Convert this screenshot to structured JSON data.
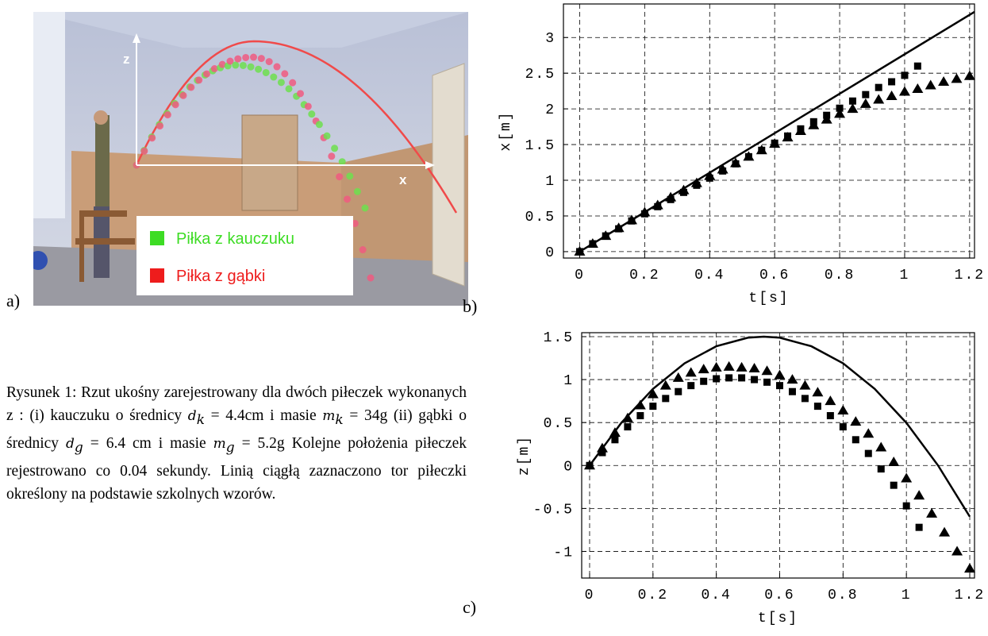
{
  "figure": {
    "panel_labels": [
      "a)",
      "b)",
      "c)"
    ],
    "photo": {
      "axis_labels": [
        "z",
        "x"
      ],
      "legend": [
        "Piłka z kauczuku",
        "Piłka z gąbki"
      ]
    }
  },
  "caption": {
    "parts": [
      "Rysunek 1: Rzut ukośny zarejestrowany dla dwóch piłeczek wykonanych z : (i) kauczuku o średnicy ",
      "d",
      "k",
      " = 4.4cm i masie ",
      "m",
      "k",
      " = 34g (ii) gąbki o średnicy ",
      "d",
      "g",
      " = 6.4 cm i masie ",
      "m",
      "g",
      " = 5.2g Kolejne położenia piłeczek rejestrowano co 0.04 sekundy. Linią ciągłą zaznaczono tor piłeczki określony na podstawie szkolnych wzorów."
    ]
  },
  "chart_data": [
    {
      "type": "line",
      "x_label": "t[s]",
      "y_label": "x[m]",
      "grid": true,
      "xlim": [
        -0.05,
        1.215
      ],
      "ylim": [
        -0.09,
        3.47
      ],
      "xticks": [
        0,
        0.2,
        0.4,
        0.6,
        0.8,
        1,
        1.2
      ],
      "yticks": [
        0,
        0.5,
        1,
        1.5,
        2,
        2.5,
        3
      ],
      "series": [
        {
          "marker": "none",
          "color": "#000000",
          "x": [
            0,
            1.215
          ],
          "values": [
            0,
            3.36
          ]
        },
        {
          "marker": "square",
          "color": "#000000",
          "x": [
            0,
            0.04,
            0.08,
            0.12,
            0.16,
            0.2,
            0.24,
            0.28,
            0.32,
            0.36,
            0.4,
            0.44,
            0.48,
            0.52,
            0.56,
            0.6,
            0.64,
            0.68,
            0.72,
            0.76,
            0.8,
            0.84,
            0.88,
            0.92,
            0.96,
            1,
            1.04
          ],
          "values": [
            0,
            0.11,
            0.22,
            0.32,
            0.43,
            0.53,
            0.63,
            0.73,
            0.83,
            0.93,
            1.03,
            1.13,
            1.23,
            1.33,
            1.42,
            1.52,
            1.62,
            1.72,
            1.82,
            1.91,
            2.01,
            2.11,
            2.2,
            2.3,
            2.38,
            2.47,
            2.6
          ]
        },
        {
          "marker": "triangle",
          "color": "#000000",
          "x": [
            0,
            0.04,
            0.08,
            0.12,
            0.16,
            0.2,
            0.24,
            0.28,
            0.32,
            0.36,
            0.4,
            0.44,
            0.48,
            0.52,
            0.56,
            0.6,
            0.64,
            0.68,
            0.72,
            0.76,
            0.8,
            0.84,
            0.88,
            0.92,
            0.96,
            1,
            1.04,
            1.08,
            1.12,
            1.16,
            1.2
          ],
          "values": [
            0,
            0.11,
            0.22,
            0.33,
            0.44,
            0.55,
            0.65,
            0.76,
            0.86,
            0.96,
            1.06,
            1.15,
            1.24,
            1.33,
            1.42,
            1.51,
            1.6,
            1.69,
            1.77,
            1.85,
            1.93,
            2.0,
            2.07,
            2.13,
            2.18,
            2.24,
            2.28,
            2.33,
            2.38,
            2.42,
            2.46
          ]
        }
      ]
    },
    {
      "type": "line",
      "x_label": "t[s]",
      "y_label": "z[m]",
      "grid": true,
      "xlim": [
        -0.025,
        1.215
      ],
      "ylim": [
        -1.31,
        1.546
      ],
      "xticks": [
        0,
        0.2,
        0.4,
        0.6,
        0.8,
        1,
        1.2
      ],
      "yticks": [
        -1,
        -0.5,
        0,
        0.5,
        1,
        1.5
      ],
      "series": [
        {
          "marker": "none",
          "color": "#000000",
          "x": [
            0,
            0.1,
            0.2,
            0.3,
            0.4,
            0.5,
            0.55,
            0.6,
            0.7,
            0.8,
            0.9,
            1,
            1.1,
            1.2
          ],
          "values": [
            0,
            0.496,
            0.892,
            1.19,
            1.388,
            1.488,
            1.5,
            1.488,
            1.388,
            1.19,
            0.892,
            0.496,
            0,
            -0.595
          ]
        },
        {
          "marker": "square",
          "color": "#000000",
          "x": [
            0,
            0.04,
            0.08,
            0.12,
            0.16,
            0.2,
            0.24,
            0.28,
            0.32,
            0.36,
            0.4,
            0.44,
            0.48,
            0.52,
            0.56,
            0.6,
            0.64,
            0.68,
            0.72,
            0.76,
            0.8,
            0.84,
            0.88,
            0.92,
            0.96,
            1,
            1.04
          ],
          "values": [
            0,
            0.15,
            0.3,
            0.45,
            0.58,
            0.69,
            0.78,
            0.86,
            0.93,
            0.98,
            1.01,
            1.02,
            1.02,
            1.0,
            0.97,
            0.93,
            0.86,
            0.78,
            0.69,
            0.58,
            0.45,
            0.3,
            0.14,
            -0.04,
            -0.23,
            -0.47,
            -0.72
          ]
        },
        {
          "marker": "triangle",
          "color": "#000000",
          "x": [
            0,
            0.04,
            0.08,
            0.12,
            0.16,
            0.2,
            0.24,
            0.28,
            0.32,
            0.36,
            0.4,
            0.44,
            0.48,
            0.52,
            0.56,
            0.6,
            0.64,
            0.68,
            0.72,
            0.76,
            0.8,
            0.84,
            0.88,
            0.92,
            0.96,
            1,
            1.04,
            1.08,
            1.12,
            1.16,
            1.2
          ],
          "values": [
            0,
            0.2,
            0.38,
            0.55,
            0.7,
            0.83,
            0.93,
            1.02,
            1.08,
            1.12,
            1.14,
            1.15,
            1.14,
            1.13,
            1.1,
            1.05,
            1.0,
            0.93,
            0.85,
            0.75,
            0.64,
            0.51,
            0.37,
            0.21,
            0.04,
            -0.15,
            -0.35,
            -0.56,
            -0.78,
            -1.0,
            -1.2
          ]
        }
      ]
    }
  ]
}
